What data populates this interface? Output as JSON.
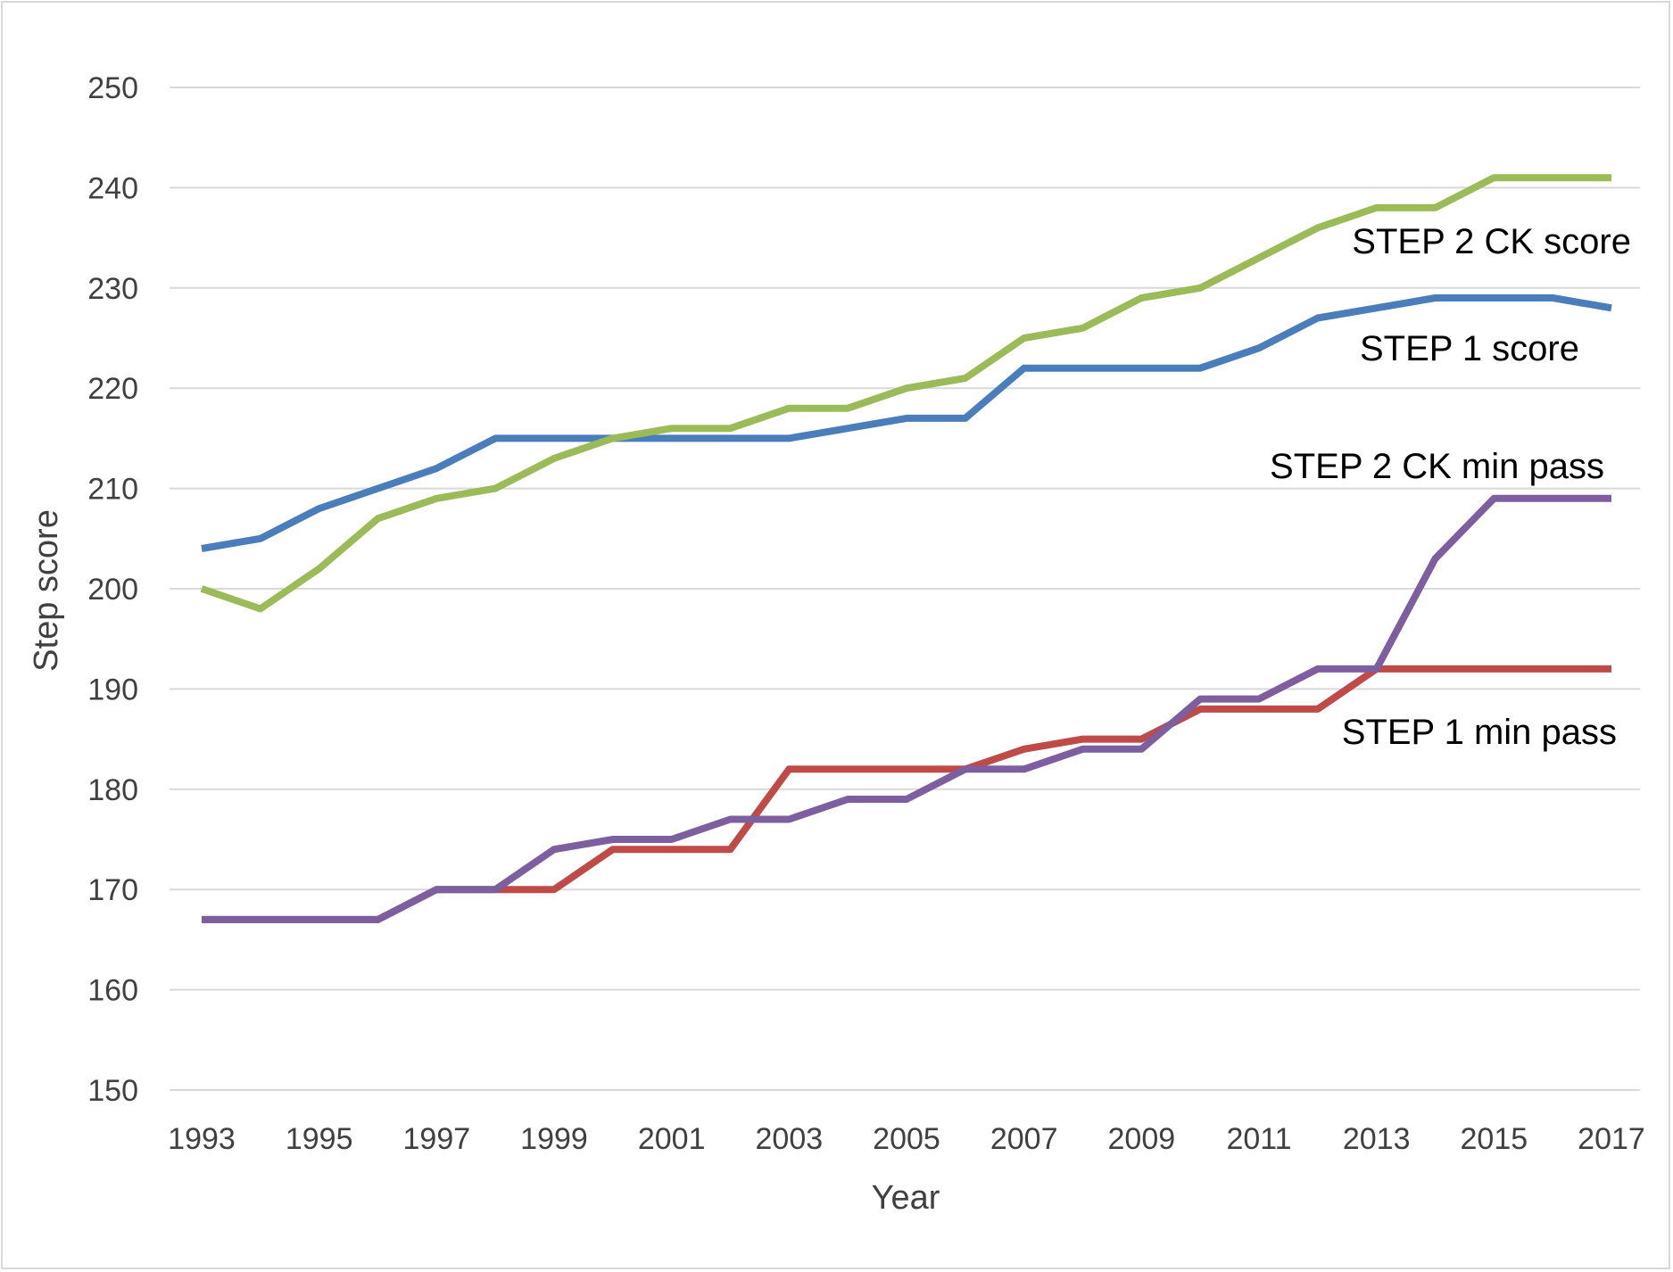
{
  "chart_data": {
    "type": "line",
    "xlabel": "Year",
    "ylabel": "Step score",
    "ylim": [
      150,
      250
    ],
    "y_ticks": [
      150,
      160,
      170,
      180,
      190,
      200,
      210,
      220,
      230,
      240,
      250
    ],
    "x_tick_labels": [
      "1993",
      "1995",
      "1997",
      "1999",
      "2001",
      "2003",
      "2005",
      "2007",
      "2009",
      "2011",
      "2013",
      "2015",
      "2017"
    ],
    "x": [
      1993,
      1994,
      1995,
      1996,
      1997,
      1998,
      1999,
      2000,
      2001,
      2002,
      2003,
      2004,
      2005,
      2006,
      2007,
      2008,
      2009,
      2010,
      2011,
      2012,
      2013,
      2014,
      2015,
      2016,
      2017
    ],
    "grid": true,
    "legend": "inline labels near lines",
    "series": [
      {
        "name": "STEP 1 score",
        "color": "#4a7ebb",
        "values": [
          204,
          205,
          208,
          210,
          212,
          215,
          215,
          215,
          215,
          215,
          215,
          216,
          217,
          217,
          222,
          222,
          222,
          222,
          224,
          227,
          228,
          229,
          229,
          229,
          228
        ]
      },
      {
        "name": "STEP 2 CK score",
        "color": "#9bbb59",
        "values": [
          200,
          198,
          202,
          207,
          209,
          210,
          213,
          215,
          216,
          216,
          218,
          218,
          220,
          221,
          225,
          226,
          229,
          230,
          233,
          236,
          238,
          238,
          241,
          241,
          241
        ]
      },
      {
        "name": "STEP 1 min pass",
        "color": "#be4b48",
        "values": [
          167,
          167,
          167,
          167,
          170,
          170,
          170,
          174,
          174,
          174,
          182,
          182,
          182,
          182,
          184,
          185,
          185,
          188,
          188,
          188,
          192,
          192,
          192,
          192,
          192
        ]
      },
      {
        "name": "STEP 2 CK min pass",
        "color": "#7d5fa0",
        "values": [
          167,
          167,
          167,
          167,
          170,
          170,
          174,
          175,
          175,
          177,
          177,
          179,
          179,
          182,
          182,
          184,
          184,
          189,
          189,
          192,
          192,
          203,
          209,
          209,
          209
        ]
      }
    ]
  }
}
